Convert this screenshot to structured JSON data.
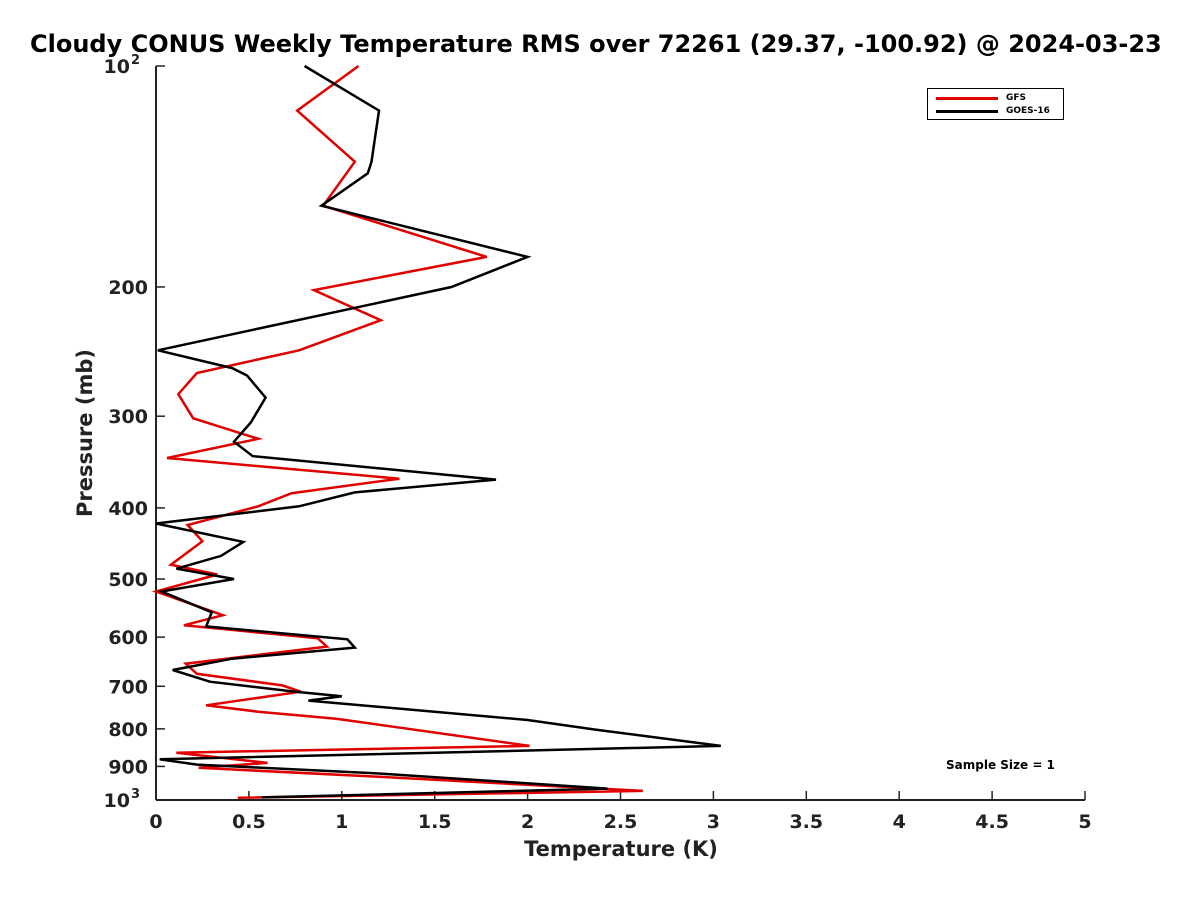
{
  "chart_data": {
    "type": "line",
    "title": "Cloudy CONUS Weekly Temperature RMS over 72261 (29.37, -100.92) @ 2024-03-23",
    "xlabel": "Temperature (K)",
    "ylabel": "Pressure (mb)",
    "xlim": [
      0,
      5
    ],
    "ylim": [
      100,
      1000
    ],
    "y_scale": "log",
    "y_reversed": true,
    "x_ticks": [
      "0",
      "0.5",
      "1",
      "1.5",
      "2",
      "2.5",
      "3",
      "3.5",
      "4",
      "4.5",
      "5"
    ],
    "y_ticks": [
      {
        "value": 100,
        "label": "10",
        "sup": "2"
      },
      {
        "value": 200,
        "label": "200",
        "sup": ""
      },
      {
        "value": 300,
        "label": "300",
        "sup": ""
      },
      {
        "value": 400,
        "label": "400",
        "sup": ""
      },
      {
        "value": 500,
        "label": "500",
        "sup": ""
      },
      {
        "value": 600,
        "label": "600",
        "sup": ""
      },
      {
        "value": 700,
        "label": "700",
        "sup": ""
      },
      {
        "value": 800,
        "label": "800",
        "sup": ""
      },
      {
        "value": 900,
        "label": "900",
        "sup": ""
      },
      {
        "value": 1000,
        "label": "10",
        "sup": "3"
      }
    ],
    "grid": false,
    "legend_position": "top-right",
    "annotation": "Sample Size = 1",
    "series": [
      {
        "name": "GFS",
        "color": "#e00000",
        "points": [
          [
            1.09,
            100
          ],
          [
            0.76,
            115
          ],
          [
            1.07,
            135
          ],
          [
            0.9,
            155
          ],
          [
            1.78,
            182
          ],
          [
            0.85,
            202
          ],
          [
            1.21,
            222
          ],
          [
            0.77,
            244
          ],
          [
            0.22,
            262
          ],
          [
            0.12,
            280
          ],
          [
            0.2,
            302
          ],
          [
            0.55,
            322
          ],
          [
            0.06,
            342
          ],
          [
            1.31,
            365
          ],
          [
            0.73,
            382
          ],
          [
            0.55,
            398
          ],
          [
            0.17,
            422
          ],
          [
            0.25,
            444
          ],
          [
            0.08,
            478
          ],
          [
            0.33,
            493
          ],
          [
            0.0,
            520
          ],
          [
            0.36,
            560
          ],
          [
            0.15,
            578
          ],
          [
            0.87,
            602
          ],
          [
            0.92,
            618
          ],
          [
            0.16,
            652
          ],
          [
            0.22,
            673
          ],
          [
            0.68,
            698
          ],
          [
            0.78,
            712
          ],
          [
            0.27,
            743
          ],
          [
            0.55,
            758
          ],
          [
            0.97,
            775
          ],
          [
            2.01,
            844
          ],
          [
            0.11,
            862
          ],
          [
            0.6,
            890
          ],
          [
            0.23,
            904
          ],
          [
            1.21,
            930
          ],
          [
            2.62,
            972
          ],
          [
            0.44,
            993
          ]
        ]
      },
      {
        "name": "GOES-16",
        "color": "#000000",
        "points": [
          [
            0.8,
            100
          ],
          [
            1.2,
            115
          ],
          [
            1.16,
            135
          ],
          [
            1.14,
            140
          ],
          [
            0.89,
            155
          ],
          [
            2.0,
            182
          ],
          [
            1.59,
            200
          ],
          [
            0.01,
            244
          ],
          [
            0.41,
            258
          ],
          [
            0.49,
            264
          ],
          [
            0.59,
            283
          ],
          [
            0.51,
            306
          ],
          [
            0.42,
            325
          ],
          [
            0.52,
            340
          ],
          [
            1.83,
            366
          ],
          [
            1.07,
            381
          ],
          [
            0.77,
            398
          ],
          [
            0.0,
            420
          ],
          [
            0.47,
            445
          ],
          [
            0.35,
            465
          ],
          [
            0.11,
            484
          ],
          [
            0.42,
            500
          ],
          [
            0.03,
            520
          ],
          [
            0.3,
            555
          ],
          [
            0.27,
            580
          ],
          [
            1.03,
            604
          ],
          [
            1.07,
            620
          ],
          [
            0.41,
            642
          ],
          [
            0.09,
            665
          ],
          [
            0.29,
            690
          ],
          [
            0.75,
            712
          ],
          [
            1.0,
            722
          ],
          [
            0.82,
            732
          ],
          [
            2.0,
            778
          ],
          [
            2.37,
            802
          ],
          [
            3.04,
            844
          ],
          [
            0.02,
            880
          ],
          [
            0.22,
            895
          ],
          [
            1.19,
            920
          ],
          [
            2.43,
            965
          ],
          [
            0.57,
            992
          ]
        ]
      }
    ]
  }
}
